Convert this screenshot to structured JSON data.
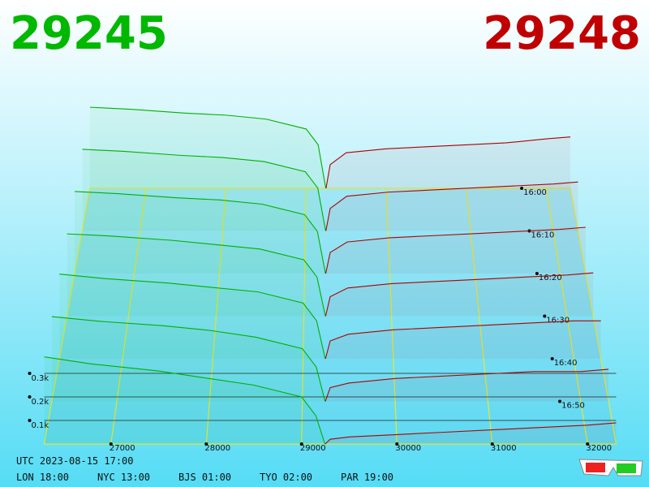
{
  "chart_data": {
    "type": "depth-3d",
    "bid": 29245,
    "bid_color": "#00b800",
    "ask": 29248,
    "ask_color": "#c00000",
    "xlim": [
      26300,
      32300
    ],
    "xticks": [
      27000,
      28000,
      29000,
      30000,
      31000,
      32000
    ],
    "tlim": [
      0,
      60
    ],
    "tticks": [
      {
        "value": 0,
        "label": "16:00"
      },
      {
        "value": 10,
        "label": "16:10"
      },
      {
        "value": 20,
        "label": "16:20"
      },
      {
        "value": 30,
        "label": "16:30"
      },
      {
        "value": 40,
        "label": "16:40"
      },
      {
        "value": 50,
        "label": "16:50"
      }
    ],
    "zticks": [
      {
        "value": 0.1,
        "label": "0.1k"
      },
      {
        "value": 0.2,
        "label": "0.2k"
      },
      {
        "value": 0.3,
        "label": "0.3k"
      }
    ],
    "snapshot_times": [
      0,
      10,
      20,
      30,
      40,
      50,
      60
    ],
    "bids": {
      "color": "#00b000",
      "prices": [
        26300,
        26800,
        27500,
        28000,
        28500,
        29000,
        29150,
        29245
      ],
      "depths": [
        [
          0.41,
          0.4,
          0.38,
          0.37,
          0.35,
          0.3,
          0.22,
          0.0
        ],
        [
          0.4,
          0.39,
          0.37,
          0.36,
          0.34,
          0.29,
          0.21,
          0.0
        ],
        [
          0.39,
          0.38,
          0.36,
          0.35,
          0.33,
          0.28,
          0.2,
          0.0
        ],
        [
          0.38,
          0.37,
          0.35,
          0.33,
          0.31,
          0.26,
          0.18,
          0.0
        ],
        [
          0.38,
          0.36,
          0.34,
          0.32,
          0.3,
          0.25,
          0.17,
          0.0
        ],
        [
          0.37,
          0.35,
          0.33,
          0.31,
          0.28,
          0.23,
          0.15,
          0.0
        ],
        [
          0.37,
          0.34,
          0.31,
          0.28,
          0.25,
          0.2,
          0.12,
          0.0
        ]
      ]
    },
    "asks": {
      "color": "#b00000",
      "prices": [
        29248,
        29300,
        29500,
        30000,
        30500,
        31000,
        31500,
        32000,
        32300
      ],
      "depths": [
        [
          0.0,
          0.12,
          0.18,
          0.2,
          0.21,
          0.22,
          0.23,
          0.25,
          0.26
        ],
        [
          0.0,
          0.11,
          0.17,
          0.19,
          0.2,
          0.21,
          0.22,
          0.23,
          0.24
        ],
        [
          0.0,
          0.1,
          0.15,
          0.17,
          0.18,
          0.19,
          0.2,
          0.21,
          0.22
        ],
        [
          0.0,
          0.09,
          0.13,
          0.15,
          0.16,
          0.17,
          0.18,
          0.19,
          0.2
        ],
        [
          0.0,
          0.08,
          0.11,
          0.13,
          0.14,
          0.15,
          0.16,
          0.17,
          0.17
        ],
        [
          0.0,
          0.06,
          0.08,
          0.1,
          0.11,
          0.12,
          0.13,
          0.13,
          0.14
        ],
        [
          0.0,
          0.02,
          0.03,
          0.04,
          0.05,
          0.06,
          0.07,
          0.08,
          0.09
        ]
      ]
    },
    "footer": {
      "utc": "UTC 2023-08-15 17:00",
      "cities": [
        "LON 18:00",
        "NYC 13:00",
        "BJS 01:00",
        "TYO 02:00",
        "PAR 19:00"
      ]
    }
  }
}
